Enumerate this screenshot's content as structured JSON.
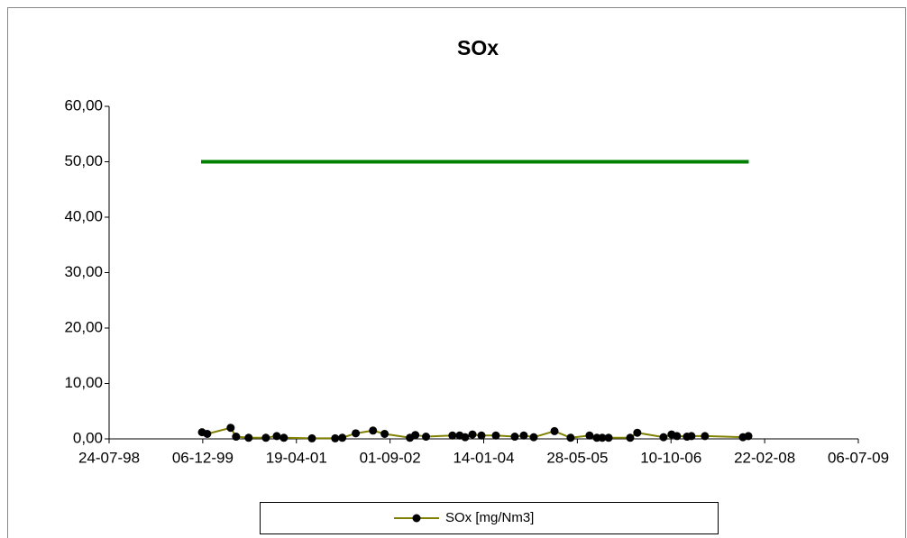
{
  "chart_data": {
    "type": "line",
    "title": "SOx",
    "xlim": [
      "1998-07-24",
      "2009-07-06"
    ],
    "xticks": [
      {
        "value": "1998-07-24",
        "label": "24-07-98"
      },
      {
        "value": "1999-12-06",
        "label": "06-12-99"
      },
      {
        "value": "2001-04-19",
        "label": "19-04-01"
      },
      {
        "value": "2002-09-01",
        "label": "01-09-02"
      },
      {
        "value": "2004-01-14",
        "label": "14-01-04"
      },
      {
        "value": "2005-05-28",
        "label": "28-05-05"
      },
      {
        "value": "2006-10-10",
        "label": "10-10-06"
      },
      {
        "value": "2008-02-22",
        "label": "22-02-08"
      },
      {
        "value": "2009-07-06",
        "label": "06-07-09"
      }
    ],
    "ylim": [
      0,
      60
    ],
    "yticks": [
      {
        "value": 0,
        "label": "0,00"
      },
      {
        "value": 10,
        "label": "10,00"
      },
      {
        "value": 20,
        "label": "20,00"
      },
      {
        "value": 30,
        "label": "30,00"
      },
      {
        "value": 40,
        "label": "40,00"
      },
      {
        "value": 50,
        "label": "50,00"
      },
      {
        "value": 60,
        "label": "60,00"
      }
    ],
    "grid": false,
    "legend": "bottom",
    "series": [
      {
        "name": "SOx [mg/Nm3]",
        "color": "#808000",
        "marker_color": "#000000",
        "x": [
          "1999-12-02",
          "1999-12-30",
          "2000-05-03",
          "2000-06-01",
          "2000-08-07",
          "2000-11-07",
          "2001-01-04",
          "2001-02-11",
          "2001-07-11",
          "2001-11-12",
          "2001-12-20",
          "2002-03-02",
          "2002-06-02",
          "2002-08-03",
          "2002-12-16",
          "2003-01-14",
          "2003-03-12",
          "2003-07-31",
          "2003-09-08",
          "2003-10-07",
          "2003-11-15",
          "2004-01-02",
          "2004-03-19",
          "2004-06-28",
          "2004-08-15",
          "2004-10-07",
          "2005-01-26",
          "2005-04-22",
          "2005-08-01",
          "2005-09-09",
          "2005-10-08",
          "2005-11-11",
          "2006-03-06",
          "2006-04-13",
          "2006-08-31",
          "2006-10-13",
          "2006-11-11",
          "2007-01-03",
          "2007-01-27",
          "2007-04-09",
          "2007-10-29",
          "2007-11-27"
        ],
        "values": [
          1.2,
          0.9,
          2.0,
          0.4,
          0.2,
          0.2,
          0.5,
          0.2,
          0.1,
          0.1,
          0.2,
          1.0,
          1.5,
          0.9,
          0.2,
          0.7,
          0.4,
          0.6,
          0.6,
          0.3,
          0.8,
          0.6,
          0.6,
          0.4,
          0.6,
          0.3,
          1.4,
          0.2,
          0.6,
          0.2,
          0.2,
          0.2,
          0.2,
          1.1,
          0.3,
          0.8,
          0.5,
          0.4,
          0.5,
          0.5,
          0.3,
          0.5
        ]
      },
      {
        "color": "#008000",
        "x": [
          "1999-11-27",
          "2007-11-29"
        ],
        "values": [
          50,
          50
        ]
      }
    ]
  }
}
